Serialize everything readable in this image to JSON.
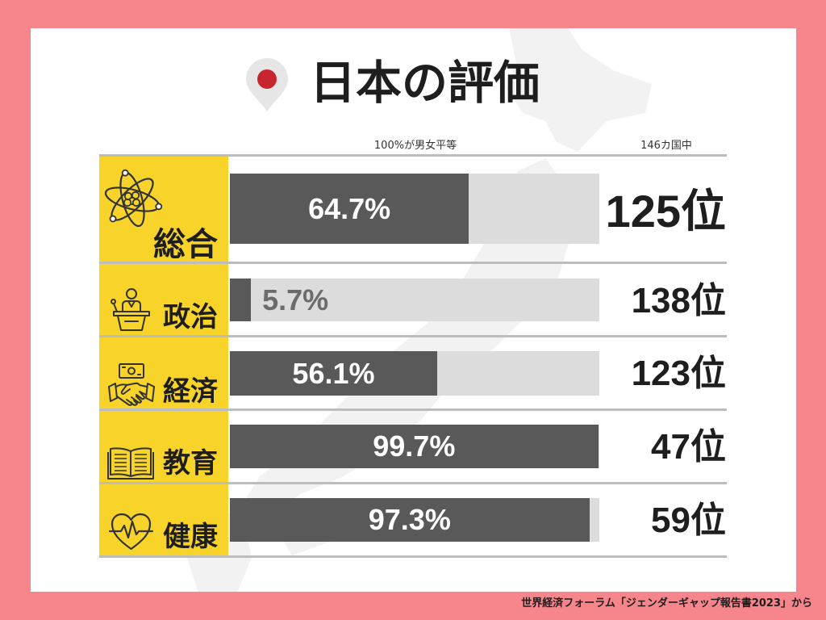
{
  "chart_data": {
    "type": "bar",
    "orientation": "horizontal",
    "title": "日本の評価",
    "column_headers": {
      "score": "100%が男女平等",
      "rank": "146カ国中"
    },
    "categories": [
      "総合",
      "政治",
      "経済",
      "教育",
      "健康"
    ],
    "values": [
      64.7,
      5.7,
      56.1,
      99.7,
      97.3
    ],
    "value_labels": [
      "64.7%",
      "5.7%",
      "56.1%",
      "99.7%",
      "97.3%"
    ],
    "ranks": [
      "125位",
      "138位",
      "123位",
      "47位",
      "59位"
    ],
    "xlim": [
      0,
      100
    ],
    "grid": false
  },
  "source": "世界経済フォーラム「ジェンダーギャップ報告書2023」から",
  "icons": {
    "title": "location-pin-icon",
    "background": "japan-map-silhouette",
    "categories": [
      "atom-icon",
      "podium-icon",
      "handshake-money-icon",
      "book-icon",
      "heart-pulse-icon"
    ]
  },
  "colors": {
    "frame": "#F6868C",
    "panel": "#FFFFFF",
    "category_cell": "#F8D42A",
    "bar_fill": "#595959",
    "bar_track": "#DCDCDC",
    "rule": "#BDBDBD",
    "pin": "#E6E6E6",
    "pin_dot": "#C8262E",
    "label_inside": "#FFFFFF",
    "label_outside": "#6B6B6B",
    "text": "#1E1E1E"
  }
}
